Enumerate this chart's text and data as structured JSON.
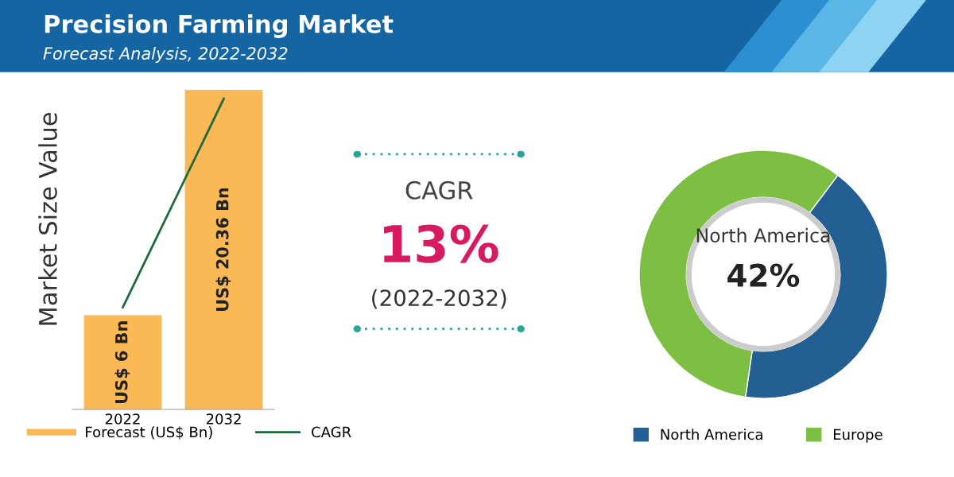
{
  "chart_data": [
    {
      "type": "bar",
      "title": "Precision Farming Market",
      "subtitle": "Forecast Analysis, 2022-2032",
      "ylabel": "Market Size Value",
      "categories": [
        "2022",
        "2032"
      ],
      "tick_labels": "x",
      "legend": "bottom",
      "series": [
        {
          "name": "Forecast (US$ Bn)",
          "type": "bar",
          "color": "#fbb955",
          "values": [
            6,
            20.36
          ],
          "value_labels": [
            "US$ 6 Bn",
            "US$ 20.36 Bn"
          ]
        },
        {
          "name": "CAGR",
          "type": "line",
          "color": "#1d6b3c",
          "values": [
            6.5,
            19.8
          ]
        }
      ]
    },
    {
      "type": "other",
      "annotations": [
        "CAGR",
        "13%",
        "(2022-2032)"
      ]
    },
    {
      "type": "donut",
      "categories": [
        "North America",
        "Europe"
      ],
      "values": [
        42,
        58
      ],
      "colors": [
        "#245f94",
        "#7dbf42"
      ],
      "legend": "bottom",
      "annotations": [
        "North America",
        "42%"
      ]
    }
  ]
}
